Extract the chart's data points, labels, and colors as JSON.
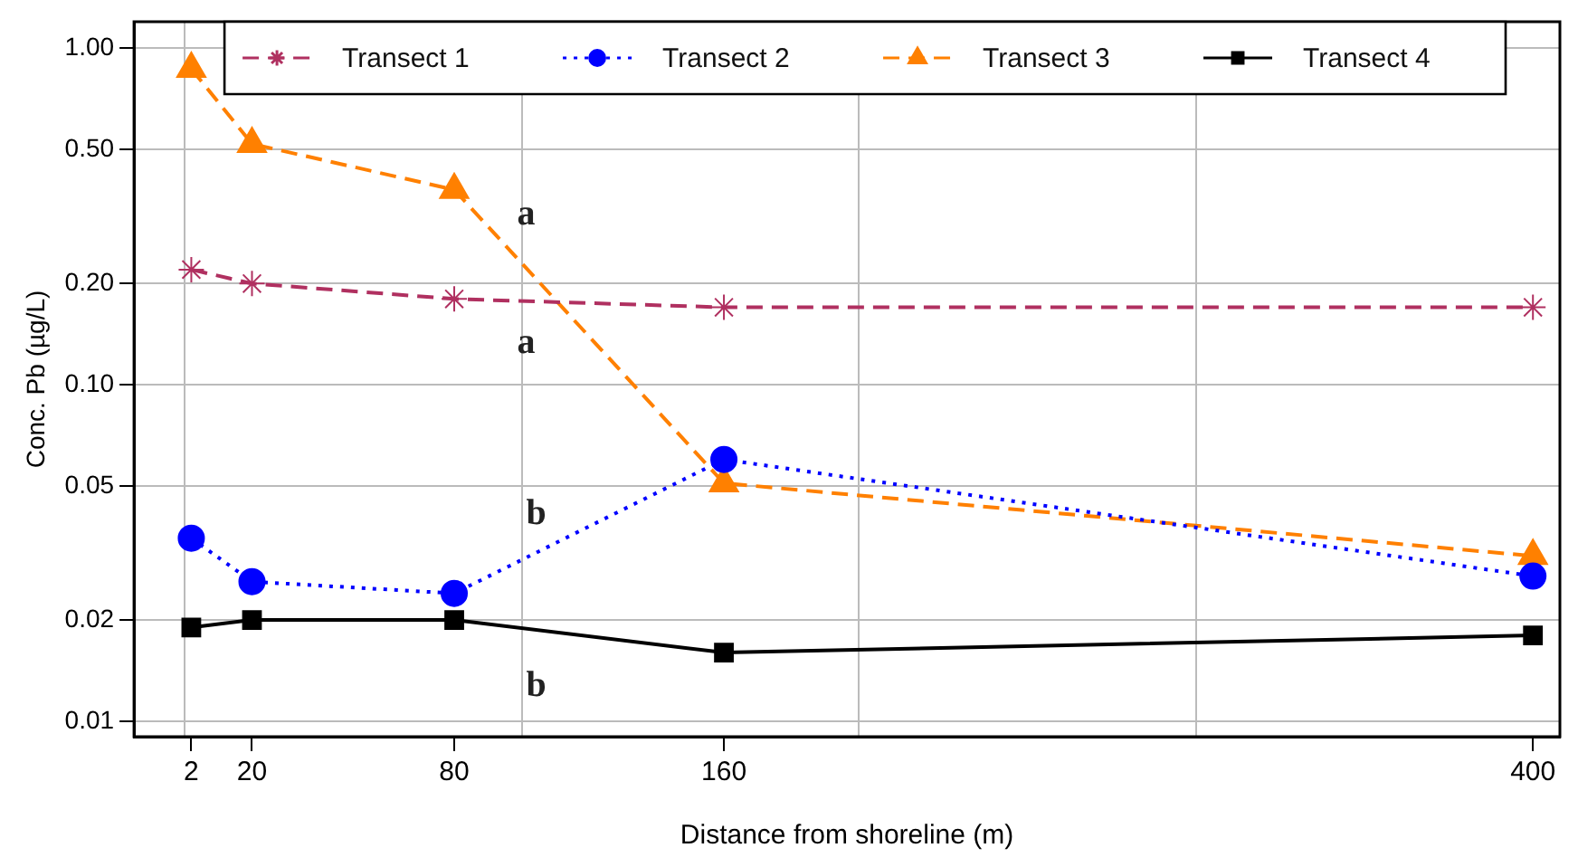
{
  "chart_data": {
    "type": "line",
    "xlabel": "Distance from shoreline (m)",
    "ylabel": "Conc. Pb (µg/L)",
    "x": [
      2,
      20,
      80,
      160,
      400
    ],
    "series": [
      {
        "name": "Transect 1",
        "color": "#b03060",
        "marker": "cross",
        "line_style": "dashed",
        "values": [
          0.22,
          0.2,
          0.18,
          0.17,
          0.17
        ]
      },
      {
        "name": "Transect 2",
        "color": "#0000ff",
        "marker": "circle",
        "line_style": "dotted",
        "values": [
          0.035,
          0.026,
          0.024,
          0.06,
          0.027
        ]
      },
      {
        "name": "Transect 3",
        "color": "#ff8000",
        "marker": "triangle",
        "line_style": "dashed",
        "values": [
          0.87,
          0.52,
          0.38,
          0.051,
          0.031
        ]
      },
      {
        "name": "Transect 4",
        "color": "#000000",
        "marker": "square",
        "line_style": "solid",
        "values": [
          0.019,
          0.02,
          0.02,
          0.016,
          0.018
        ]
      }
    ],
    "xlim": [
      -15,
      408
    ],
    "xticks": [
      {
        "value": 0,
        "label": null
      },
      2,
      20,
      80,
      {
        "value": 100,
        "label": null
      },
      160,
      {
        "value": 200,
        "label": null
      },
      {
        "value": 300,
        "label": null
      },
      400
    ],
    "ylim": [
      0.009,
      1.2
    ],
    "yticks": [
      {
        "value": 0.01,
        "label": "0.01"
      },
      {
        "value": 0.02,
        "label": "0.02"
      },
      {
        "value": 0.05,
        "label": "0.05"
      },
      {
        "value": 0.1,
        "label": "0.10"
      },
      {
        "value": 0.2,
        "label": "0.20"
      },
      {
        "value": 0.5,
        "label": "0.50"
      },
      {
        "value": 1,
        "label": "1.00"
      }
    ],
    "log": "y",
    "grid": true,
    "legend": "top",
    "annotations": [
      "a",
      "a",
      "b",
      "b"
    ]
  }
}
